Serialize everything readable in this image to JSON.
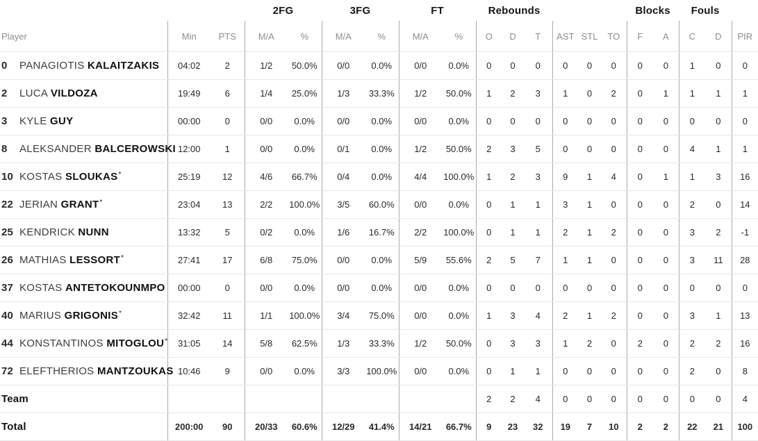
{
  "table": {
    "group_headers": [
      {
        "label": "",
        "span": 3
      },
      {
        "label": "2FG",
        "span": 2
      },
      {
        "label": "3FG",
        "span": 2
      },
      {
        "label": "FT",
        "span": 2
      },
      {
        "label": "Rebounds",
        "span": 3
      },
      {
        "label": "",
        "span": 3
      },
      {
        "label": "Blocks",
        "span": 2
      },
      {
        "label": "Fouls",
        "span": 2
      },
      {
        "label": "",
        "span": 1
      }
    ],
    "column_headers": [
      "Player",
      "Min",
      "PTS",
      "M/A",
      "%",
      "M/A",
      "%",
      "M/A",
      "%",
      "O",
      "D",
      "T",
      "AST",
      "STL",
      "TO",
      "F",
      "A",
      "C",
      "D",
      "PIR"
    ],
    "column_keys": [
      "player",
      "min",
      "pts",
      "fg2-ma",
      "fg2-pct",
      "fg3-ma",
      "fg3-pct",
      "ft-ma",
      "ft-pct",
      "reb-o",
      "reb-d",
      "reb-t",
      "ast",
      "stl",
      "to",
      "blk-f",
      "blk-a",
      "foul-c",
      "foul-d",
      "pir"
    ],
    "players": [
      {
        "number": "0",
        "first": "PANAGIOTIS",
        "last": "KALAITZAKIS",
        "starter": false,
        "stats": [
          "04:02",
          "2",
          "1/2",
          "50.0%",
          "0/0",
          "0.0%",
          "0/0",
          "0.0%",
          "0",
          "0",
          "0",
          "0",
          "0",
          "0",
          "0",
          "0",
          "1",
          "0",
          "0"
        ]
      },
      {
        "number": "2",
        "first": "LUCA",
        "last": "VILDOZA",
        "starter": false,
        "stats": [
          "19:49",
          "6",
          "1/4",
          "25.0%",
          "1/3",
          "33.3%",
          "1/2",
          "50.0%",
          "1",
          "2",
          "3",
          "1",
          "0",
          "2",
          "0",
          "1",
          "1",
          "1",
          "1"
        ]
      },
      {
        "number": "3",
        "first": "KYLE",
        "last": "GUY",
        "starter": false,
        "stats": [
          "00:00",
          "0",
          "0/0",
          "0.0%",
          "0/0",
          "0.0%",
          "0/0",
          "0.0%",
          "0",
          "0",
          "0",
          "0",
          "0",
          "0",
          "0",
          "0",
          "0",
          "0",
          "0"
        ]
      },
      {
        "number": "8",
        "first": "ALEKSANDER",
        "last": "BALCEROWSKI",
        "starter": false,
        "stats": [
          "12:00",
          "1",
          "0/0",
          "0.0%",
          "0/1",
          "0.0%",
          "1/2",
          "50.0%",
          "2",
          "3",
          "5",
          "0",
          "0",
          "0",
          "0",
          "0",
          "4",
          "1",
          "1"
        ]
      },
      {
        "number": "10",
        "first": "KOSTAS",
        "last": "SLOUKAS",
        "starter": true,
        "stats": [
          "25:19",
          "12",
          "4/6",
          "66.7%",
          "0/4",
          "0.0%",
          "4/4",
          "100.0%",
          "1",
          "2",
          "3",
          "9",
          "1",
          "4",
          "0",
          "1",
          "1",
          "3",
          "16"
        ]
      },
      {
        "number": "22",
        "first": "JERIAN",
        "last": "GRANT",
        "starter": true,
        "stats": [
          "23:04",
          "13",
          "2/2",
          "100.0%",
          "3/5",
          "60.0%",
          "0/0",
          "0.0%",
          "0",
          "1",
          "1",
          "3",
          "1",
          "0",
          "0",
          "0",
          "2",
          "0",
          "14"
        ]
      },
      {
        "number": "25",
        "first": "KENDRICK",
        "last": "NUNN",
        "starter": false,
        "stats": [
          "13:32",
          "5",
          "0/2",
          "0.0%",
          "1/6",
          "16.7%",
          "2/2",
          "100.0%",
          "0",
          "1",
          "1",
          "2",
          "1",
          "2",
          "0",
          "0",
          "3",
          "2",
          "-1"
        ]
      },
      {
        "number": "26",
        "first": "MATHIAS",
        "last": "LESSORT",
        "starter": true,
        "stats": [
          "27:41",
          "17",
          "6/8",
          "75.0%",
          "0/0",
          "0.0%",
          "5/9",
          "55.6%",
          "2",
          "5",
          "7",
          "1",
          "1",
          "0",
          "0",
          "0",
          "3",
          "11",
          "28"
        ]
      },
      {
        "number": "37",
        "first": "KOSTAS",
        "last": "ANTETOKOUNMPO",
        "starter": false,
        "stats": [
          "00:00",
          "0",
          "0/0",
          "0.0%",
          "0/0",
          "0.0%",
          "0/0",
          "0.0%",
          "0",
          "0",
          "0",
          "0",
          "0",
          "0",
          "0",
          "0",
          "0",
          "0",
          "0"
        ]
      },
      {
        "number": "40",
        "first": "MARIUS",
        "last": "GRIGONIS",
        "starter": true,
        "stats": [
          "32:42",
          "11",
          "1/1",
          "100.0%",
          "3/4",
          "75.0%",
          "0/0",
          "0.0%",
          "1",
          "3",
          "4",
          "2",
          "1",
          "2",
          "0",
          "0",
          "3",
          "1",
          "13"
        ]
      },
      {
        "number": "44",
        "first": "KONSTANTINOS",
        "last": "MITOGLOU",
        "starter": true,
        "stats": [
          "31:05",
          "14",
          "5/8",
          "62.5%",
          "1/3",
          "33.3%",
          "1/2",
          "50.0%",
          "0",
          "3",
          "3",
          "1",
          "2",
          "0",
          "2",
          "0",
          "2",
          "2",
          "16"
        ]
      },
      {
        "number": "72",
        "first": "ELEFTHERIOS",
        "last": "MANTZOUKAS",
        "starter": false,
        "stats": [
          "10:46",
          "9",
          "0/0",
          "0.0%",
          "3/3",
          "100.0%",
          "0/0",
          "0.0%",
          "0",
          "1",
          "1",
          "0",
          "0",
          "0",
          "0",
          "0",
          "2",
          "0",
          "8"
        ]
      }
    ],
    "summary_rows": [
      {
        "label": "Team",
        "stats": [
          "",
          "",
          "",
          "",
          "",
          "",
          "",
          "",
          "2",
          "2",
          "4",
          "0",
          "0",
          "0",
          "0",
          "0",
          "0",
          "0",
          "4"
        ]
      },
      {
        "label": "Total",
        "stats": [
          "200:00",
          "90",
          "20/33",
          "60.6%",
          "12/29",
          "41.4%",
          "14/21",
          "66.7%",
          "9",
          "23",
          "32",
          "19",
          "7",
          "10",
          "2",
          "2",
          "22",
          "21",
          "100"
        ]
      }
    ],
    "starter_mark": "*"
  }
}
